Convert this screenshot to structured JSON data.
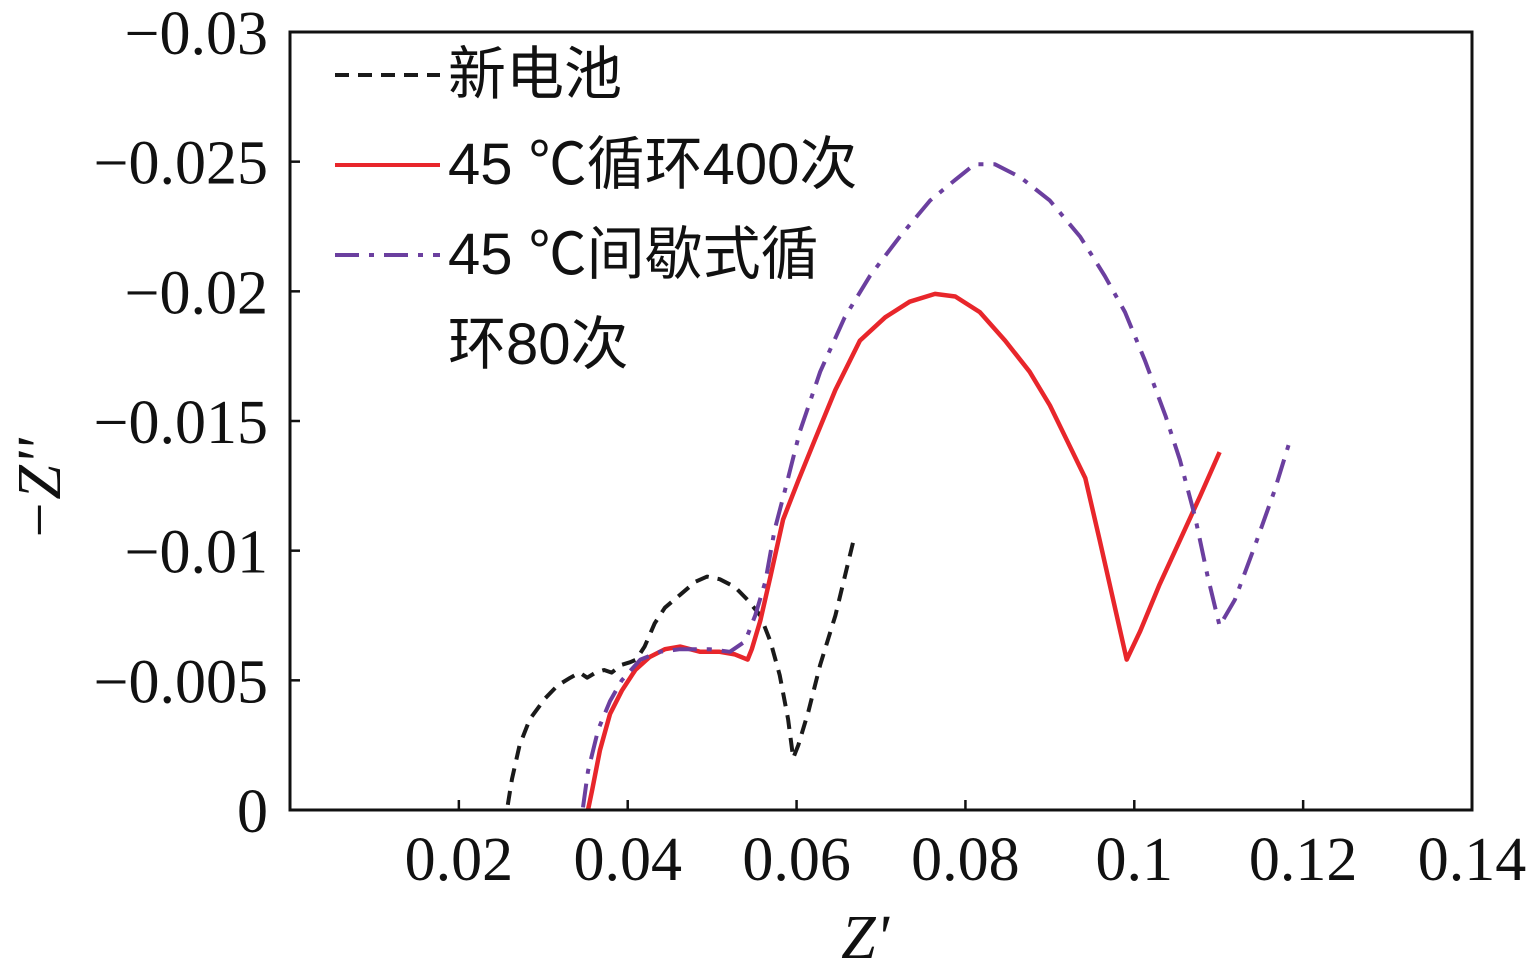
{
  "chart_data": {
    "type": "line",
    "xlabel": "Z'",
    "ylabel": "−Z''",
    "xlim": [
      0,
      0.14
    ],
    "ylim": [
      0,
      -0.03
    ],
    "x_ticks": [
      "0.02",
      "0.04",
      "0.06",
      "0.08",
      "0.1",
      "0.12",
      "0.14"
    ],
    "y_ticks": [
      "−0.03",
      "−0.025",
      "−0.02",
      "−0.015",
      "−0.01",
      "−0.005",
      "0"
    ],
    "grid": false,
    "legend_position": "top-left",
    "series": [
      {
        "name": "新电池",
        "color": "#1a1a1a",
        "line_style": "dashed",
        "points": [
          [
            0.0258,
            -0.0002
          ],
          [
            0.0263,
            -0.0012
          ],
          [
            0.0272,
            -0.0025
          ],
          [
            0.0284,
            -0.0035
          ],
          [
            0.0302,
            -0.0043
          ],
          [
            0.0317,
            -0.0048
          ],
          [
            0.0332,
            -0.0051
          ],
          [
            0.0343,
            -0.0053
          ],
          [
            0.0352,
            -0.0051
          ],
          [
            0.0362,
            -0.0053
          ],
          [
            0.0372,
            -0.0054
          ],
          [
            0.0381,
            -0.0053
          ],
          [
            0.0393,
            -0.0056
          ],
          [
            0.0403,
            -0.0057
          ],
          [
            0.041,
            -0.0058
          ],
          [
            0.042,
            -0.0063
          ],
          [
            0.0432,
            -0.0072
          ],
          [
            0.0444,
            -0.0078
          ],
          [
            0.0462,
            -0.0083
          ],
          [
            0.048,
            -0.0088
          ],
          [
            0.0494,
            -0.009
          ],
          [
            0.0509,
            -0.0089
          ],
          [
            0.0527,
            -0.0086
          ],
          [
            0.0542,
            -0.0081
          ],
          [
            0.0557,
            -0.0075
          ],
          [
            0.0569,
            -0.0065
          ],
          [
            0.058,
            -0.0052
          ],
          [
            0.059,
            -0.0035
          ],
          [
            0.0596,
            -0.002
          ],
          [
            0.0602,
            -0.0025
          ],
          [
            0.0614,
            -0.0038
          ],
          [
            0.0628,
            -0.0056
          ],
          [
            0.0646,
            -0.0075
          ],
          [
            0.0669,
            -0.0106
          ]
        ]
      },
      {
        "name": "45 ℃循环400次",
        "color": "#e8262b",
        "line_style": "solid",
        "points": [
          [
            0.0353,
            0.0
          ],
          [
            0.0358,
            -0.0008
          ],
          [
            0.0367,
            -0.0023
          ],
          [
            0.0379,
            -0.0037
          ],
          [
            0.0393,
            -0.0046
          ],
          [
            0.0409,
            -0.0054
          ],
          [
            0.0426,
            -0.0059
          ],
          [
            0.0444,
            -0.0062
          ],
          [
            0.0462,
            -0.0063
          ],
          [
            0.0486,
            -0.0061
          ],
          [
            0.0509,
            -0.0061
          ],
          [
            0.0527,
            -0.006
          ],
          [
            0.0542,
            -0.0058
          ],
          [
            0.0547,
            -0.0062
          ],
          [
            0.0557,
            -0.0073
          ],
          [
            0.0569,
            -0.009
          ],
          [
            0.0584,
            -0.0112
          ],
          [
            0.0602,
            -0.0127
          ],
          [
            0.0622,
            -0.0143
          ],
          [
            0.0646,
            -0.0162
          ],
          [
            0.0675,
            -0.0181
          ],
          [
            0.0705,
            -0.019
          ],
          [
            0.0734,
            -0.0196
          ],
          [
            0.0764,
            -0.0199
          ],
          [
            0.0788,
            -0.0198
          ],
          [
            0.0817,
            -0.0192
          ],
          [
            0.0847,
            -0.0181
          ],
          [
            0.0876,
            -0.0169
          ],
          [
            0.09,
            -0.0156
          ],
          [
            0.0921,
            -0.0142
          ],
          [
            0.0942,
            -0.0128
          ],
          [
            0.0959,
            -0.0104
          ],
          [
            0.0975,
            -0.0081
          ],
          [
            0.0991,
            -0.0058
          ],
          [
            0.1007,
            -0.0069
          ],
          [
            0.103,
            -0.0087
          ],
          [
            0.1054,
            -0.0104
          ],
          [
            0.1078,
            -0.0121
          ],
          [
            0.1101,
            -0.0138
          ]
        ]
      },
      {
        "name": "45 ℃间歇式循环80次",
        "color": "#6b3f9f",
        "line_style": "dash-dot",
        "points": [
          [
            0.0347,
            -0.0001
          ],
          [
            0.0353,
            -0.0015
          ],
          [
            0.0365,
            -0.0031
          ],
          [
            0.0379,
            -0.0042
          ],
          [
            0.0393,
            -0.005
          ],
          [
            0.0415,
            -0.0058
          ],
          [
            0.0438,
            -0.0061
          ],
          [
            0.0462,
            -0.0062
          ],
          [
            0.0497,
            -0.0062
          ],
          [
            0.0521,
            -0.0061
          ],
          [
            0.0539,
            -0.0065
          ],
          [
            0.0551,
            -0.0075
          ],
          [
            0.0563,
            -0.0088
          ],
          [
            0.0574,
            -0.0108
          ],
          [
            0.0586,
            -0.0123
          ],
          [
            0.0604,
            -0.0146
          ],
          [
            0.0628,
            -0.0169
          ],
          [
            0.0657,
            -0.019
          ],
          [
            0.0687,
            -0.0206
          ],
          [
            0.0722,
            -0.0221
          ],
          [
            0.0758,
            -0.0235
          ],
          [
            0.0788,
            -0.0243
          ],
          [
            0.0811,
            -0.0249
          ],
          [
            0.0835,
            -0.0249
          ],
          [
            0.0865,
            -0.0244
          ],
          [
            0.09,
            -0.0235
          ],
          [
            0.0936,
            -0.0221
          ],
          [
            0.0965,
            -0.0206
          ],
          [
            0.0989,
            -0.0192
          ],
          [
            0.1013,
            -0.0173
          ],
          [
            0.1037,
            -0.0152
          ],
          [
            0.1054,
            -0.0135
          ],
          [
            0.1072,
            -0.0113
          ],
          [
            0.1087,
            -0.009
          ],
          [
            0.1101,
            -0.0071
          ],
          [
            0.1119,
            -0.0081
          ],
          [
            0.1143,
            -0.0102
          ],
          [
            0.1166,
            -0.0123
          ],
          [
            0.1184,
            -0.0142
          ]
        ]
      }
    ]
  }
}
